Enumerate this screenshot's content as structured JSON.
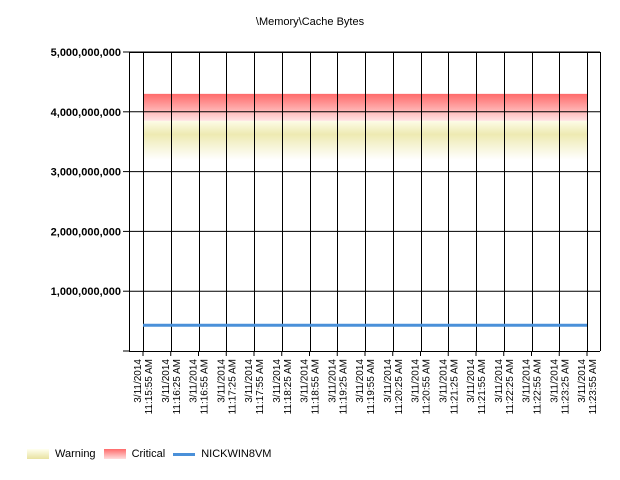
{
  "chart_data": {
    "type": "line",
    "title": "\\Memory\\Cache Bytes",
    "xlabel": "",
    "ylabel": "",
    "ylim": [
      0,
      5000000000
    ],
    "yticks": [
      0,
      1000000000,
      2000000000,
      3000000000,
      4000000000,
      5000000000
    ],
    "ytick_labels": [
      "",
      "1,000,000,000",
      "2,000,000,000",
      "3,000,000,000",
      "4,000,000,000",
      "5,000,000,000"
    ],
    "x": [
      [
        "3/11/2014",
        "11:15:55 AM"
      ],
      [
        "3/11/2014",
        "11:16:25 AM"
      ],
      [
        "3/11/2014",
        "11:16:55 AM"
      ],
      [
        "3/11/2014",
        "11:17:25 AM"
      ],
      [
        "3/11/2014",
        "11:17:55 AM"
      ],
      [
        "3/11/2014",
        "11:18:25 AM"
      ],
      [
        "3/11/2014",
        "11:18:55 AM"
      ],
      [
        "3/11/2014",
        "11:19:25 AM"
      ],
      [
        "3/11/2014",
        "11:19:55 AM"
      ],
      [
        "3/11/2014",
        "11:20:25 AM"
      ],
      [
        "3/11/2014",
        "11:20:55 AM"
      ],
      [
        "3/11/2014",
        "11:21:25 AM"
      ],
      [
        "3/11/2014",
        "11:21:55 AM"
      ],
      [
        "3/11/2014",
        "11:22:25 AM"
      ],
      [
        "3/11/2014",
        "11:22:55 AM"
      ],
      [
        "3/11/2014",
        "11:23:25 AM"
      ],
      [
        "3/11/2014",
        "11:23:55 AM"
      ]
    ],
    "series": [
      {
        "name": "NICKWIN8VM",
        "color": "#4a90d9",
        "values": [
          430000000,
          430000000,
          430000000,
          430000000,
          430000000,
          430000000,
          430000000,
          430000000,
          430000000,
          430000000,
          430000000,
          430000000,
          430000000,
          430000000,
          430000000,
          430000000,
          430000000
        ]
      }
    ],
    "bands": [
      {
        "name": "Warning",
        "from": 3200000000,
        "to": 3850000000,
        "color": "#eeeab0"
      },
      {
        "name": "Critical",
        "from": 3850000000,
        "to": 4300000000,
        "color": "#ff7777"
      }
    ],
    "grid": true,
    "legend": "bottom-left"
  },
  "legend": [
    {
      "label": "Warning",
      "kind": "band",
      "color": "#eeeab8"
    },
    {
      "label": "Critical",
      "kind": "band",
      "color": "#ff8080"
    },
    {
      "label": "NICKWIN8VM",
      "kind": "line",
      "color": "#4a90d9"
    }
  ]
}
